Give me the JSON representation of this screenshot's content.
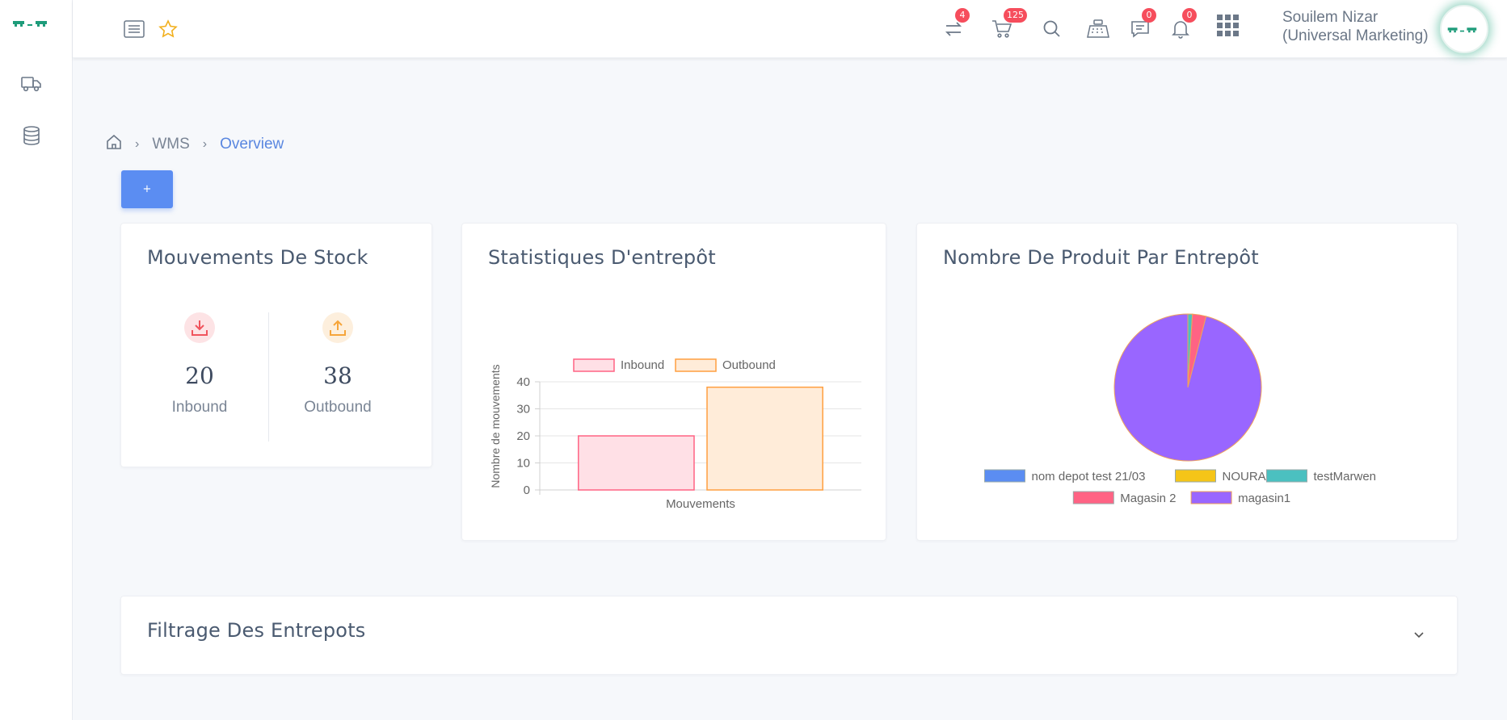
{
  "header": {
    "user_name_line1": "Souilem Nizar",
    "user_name_line2": "(Universal Marketing)",
    "badges": {
      "transfer": "4",
      "cart": "125",
      "chat": "0",
      "notifications": "0"
    }
  },
  "breadcrumb": {
    "level1": "WMS",
    "level2": "Overview"
  },
  "add_button_label": "+",
  "stock_card": {
    "title": "Mouvements De Stock",
    "inbound_value": "20",
    "inbound_label": "Inbound",
    "outbound_value": "38",
    "outbound_label": "Outbound"
  },
  "stats_card": {
    "title": "Statistiques D'entrepôt"
  },
  "pie_card": {
    "title": "Nombre De Produit Par Entrepôt"
  },
  "filter_card": {
    "title": "Filtrage Des Entrepots"
  },
  "colors": {
    "accent": "#5b8df2",
    "inbound_fill": "#ffe0e6",
    "inbound_stroke": "#ff6384",
    "outbound_fill": "#ffecd9",
    "outbound_stroke": "#ff9f40"
  },
  "chart_data": [
    {
      "type": "bar",
      "categories": [
        "Mouvements"
      ],
      "series": [
        {
          "name": "Inbound",
          "values": [
            20
          ],
          "fill": "#ffe0e6",
          "stroke": "#ff6384"
        },
        {
          "name": "Outbound",
          "values": [
            38
          ],
          "fill": "#ffecd9",
          "stroke": "#ff9f40"
        }
      ],
      "xlabel": "Mouvements",
      "ylabel": "Nombre de mouvements",
      "ylim": [
        0,
        40
      ],
      "yticks": [
        0,
        10,
        20,
        30,
        40
      ],
      "grid": true,
      "legend": "top"
    },
    {
      "type": "pie",
      "labels": [
        "nom depot test 21/03",
        "NOURA",
        "testMarwen",
        "Magasin 2",
        "magasin1"
      ],
      "values": [
        0,
        0,
        1,
        3,
        96
      ],
      "colors": [
        "#5b8df2",
        "#f5c518",
        "#4bc0c0",
        "#ff6384",
        "#9966ff"
      ],
      "legend": "bottom"
    }
  ]
}
